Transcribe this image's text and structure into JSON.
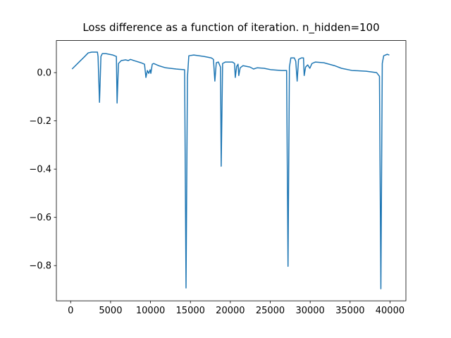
{
  "chart_data": {
    "type": "line",
    "title": "Loss difference as a function of iteration. n_hidden=100",
    "x": [
      176,
      1057,
      1762,
      2200,
      2643,
      3350,
      3430,
      3612,
      3790,
      3965,
      4400,
      5286,
      5727,
      5815,
      5990,
      6344,
      6872,
      7225,
      7490,
      7930,
      8810,
      9250,
      9427,
      9604,
      9780,
      9956,
      10044,
      10220,
      10400,
      11013,
      11894,
      13216,
      14273,
      14449,
      14626,
      14800,
      15418,
      16740,
      17620,
      17885,
      18060,
      18240,
      18500,
      18767,
      18855,
      19030,
      19383,
      20264,
      20529,
      20617,
      20793,
      20969,
      21057,
      21233,
      21586,
      22467,
      22907,
      23348,
      24229,
      25110,
      26432,
      27048,
      27225,
      27400,
      27577,
      28018,
      28194,
      28370,
      28546,
      28899,
      29163,
      29251,
      29427,
      29691,
      29956,
      30220,
      30660,
      31718,
      33040,
      33920,
      35242,
      37004,
      38326,
      38678,
      38855,
      39031,
      39207,
      39648,
      39912
    ],
    "series": [
      {
        "color": "#1f77b4",
        "values": [
          0.015,
          0.044,
          0.067,
          0.082,
          0.085,
          0.085,
          0.067,
          -0.123,
          0.067,
          0.079,
          0.079,
          0.073,
          0.067,
          -0.126,
          0.038,
          0.05,
          0.053,
          0.05,
          0.055,
          0.05,
          0.041,
          0.035,
          -0.02,
          0.009,
          -0.003,
          0.012,
          -0.003,
          0.035,
          0.038,
          0.029,
          0.02,
          0.015,
          0.012,
          -0.893,
          -0.02,
          0.07,
          0.073,
          0.067,
          0.061,
          0.055,
          -0.035,
          0.041,
          0.044,
          0.023,
          -0.388,
          0.038,
          0.044,
          0.044,
          0.038,
          -0.02,
          0.026,
          0.035,
          -0.012,
          0.02,
          0.029,
          0.023,
          0.015,
          0.02,
          0.018,
          0.012,
          0.009,
          0.009,
          -0.803,
          0.023,
          0.061,
          0.061,
          0.047,
          -0.035,
          0.055,
          0.061,
          0.061,
          -0.012,
          0.023,
          0.032,
          0.018,
          0.038,
          0.044,
          0.041,
          0.029,
          0.018,
          0.009,
          0.006,
          0,
          -0.015,
          -0.896,
          0.038,
          0.07,
          0.076,
          0.073
        ]
      }
    ],
    "xlim": [
      -1790,
      41990
    ],
    "ylim": [
      -0.946,
      0.133
    ],
    "xticks": [
      0,
      5000,
      10000,
      15000,
      20000,
      25000,
      30000,
      35000,
      40000
    ],
    "yticks": [
      {
        "value": -0.8,
        "label": "−0.8"
      },
      {
        "value": -0.6,
        "label": "−0.6"
      },
      {
        "value": -0.4,
        "label": "−0.4"
      },
      {
        "value": -0.2,
        "label": "−0.2"
      },
      {
        "value": 0,
        "label": "0.0"
      }
    ]
  }
}
